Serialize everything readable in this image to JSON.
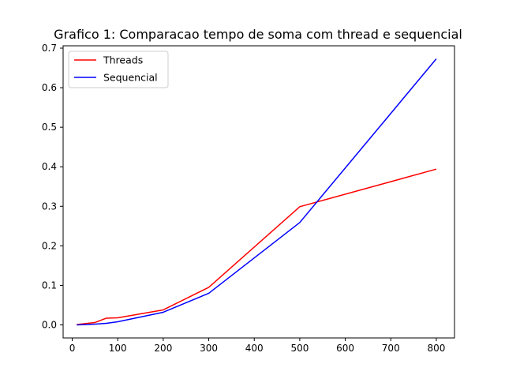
{
  "chart_data": {
    "type": "line",
    "title": "Grafico 1: Comparacao tempo de soma com thread e sequencial",
    "xlabel": "",
    "ylabel": "",
    "xlim": [
      -20,
      840
    ],
    "ylim": [
      -0.033,
      0.706
    ],
    "x_ticks": [
      0,
      100,
      200,
      300,
      400,
      500,
      600,
      700,
      800
    ],
    "y_ticks": [
      0.0,
      0.1,
      0.2,
      0.3,
      0.4,
      0.5,
      0.6,
      0.7
    ],
    "y_tick_labels": [
      "0.0",
      "0.1",
      "0.2",
      "0.3",
      "0.4",
      "0.5",
      "0.6",
      "0.7"
    ],
    "grid": false,
    "legend_position": "top-left",
    "series": [
      {
        "name": "Threads",
        "color": "#ff0000",
        "x": [
          10,
          50,
          75,
          100,
          200,
          300,
          500,
          800
        ],
        "y": [
          0.001,
          0.006,
          0.017,
          0.018,
          0.038,
          0.095,
          0.299,
          0.394
        ]
      },
      {
        "name": "Sequencial",
        "color": "#0000ff",
        "x": [
          10,
          50,
          75,
          100,
          200,
          300,
          500,
          800
        ],
        "y": [
          0.0,
          0.002,
          0.004,
          0.008,
          0.032,
          0.08,
          0.259,
          0.673
        ]
      }
    ]
  }
}
